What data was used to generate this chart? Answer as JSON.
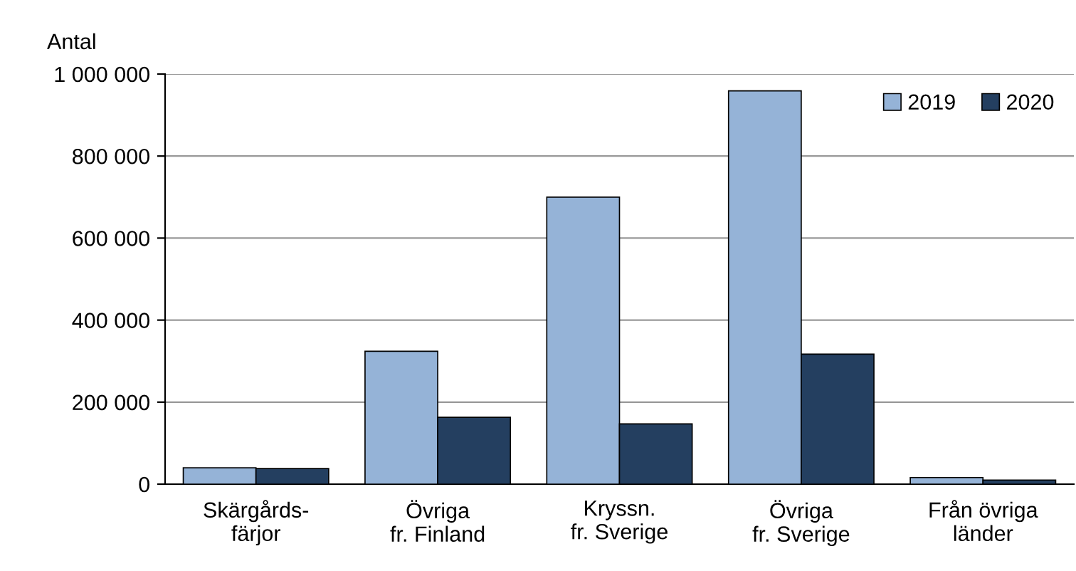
{
  "chart_data": {
    "type": "bar",
    "ylabel": "Antal",
    "categories": [
      "Skärgårds-\nfärjor",
      "Övriga\nfr. Finland",
      "Kryssn.\nfr. Sverige",
      "Övriga\nfr. Sverige",
      "Från övriga\nländer"
    ],
    "series": [
      {
        "name": "2019",
        "color": "#95b3d7",
        "values": [
          40000,
          324000,
          700000,
          959000,
          16000
        ]
      },
      {
        "name": "2020",
        "color": "#243f60",
        "values": [
          38000,
          163000,
          147000,
          317000,
          10000
        ]
      }
    ],
    "ylim": [
      0,
      1000000
    ],
    "yticks": [
      {
        "value": 0,
        "label": "0"
      },
      {
        "value": 200000,
        "label": "200 000"
      },
      {
        "value": 400000,
        "label": "400 000"
      },
      {
        "value": 600000,
        "label": "600 000"
      },
      {
        "value": 800000,
        "label": "800 000"
      },
      {
        "value": 1000000,
        "label": "1 000 000"
      }
    ],
    "grid": "y",
    "legend": "top right"
  }
}
